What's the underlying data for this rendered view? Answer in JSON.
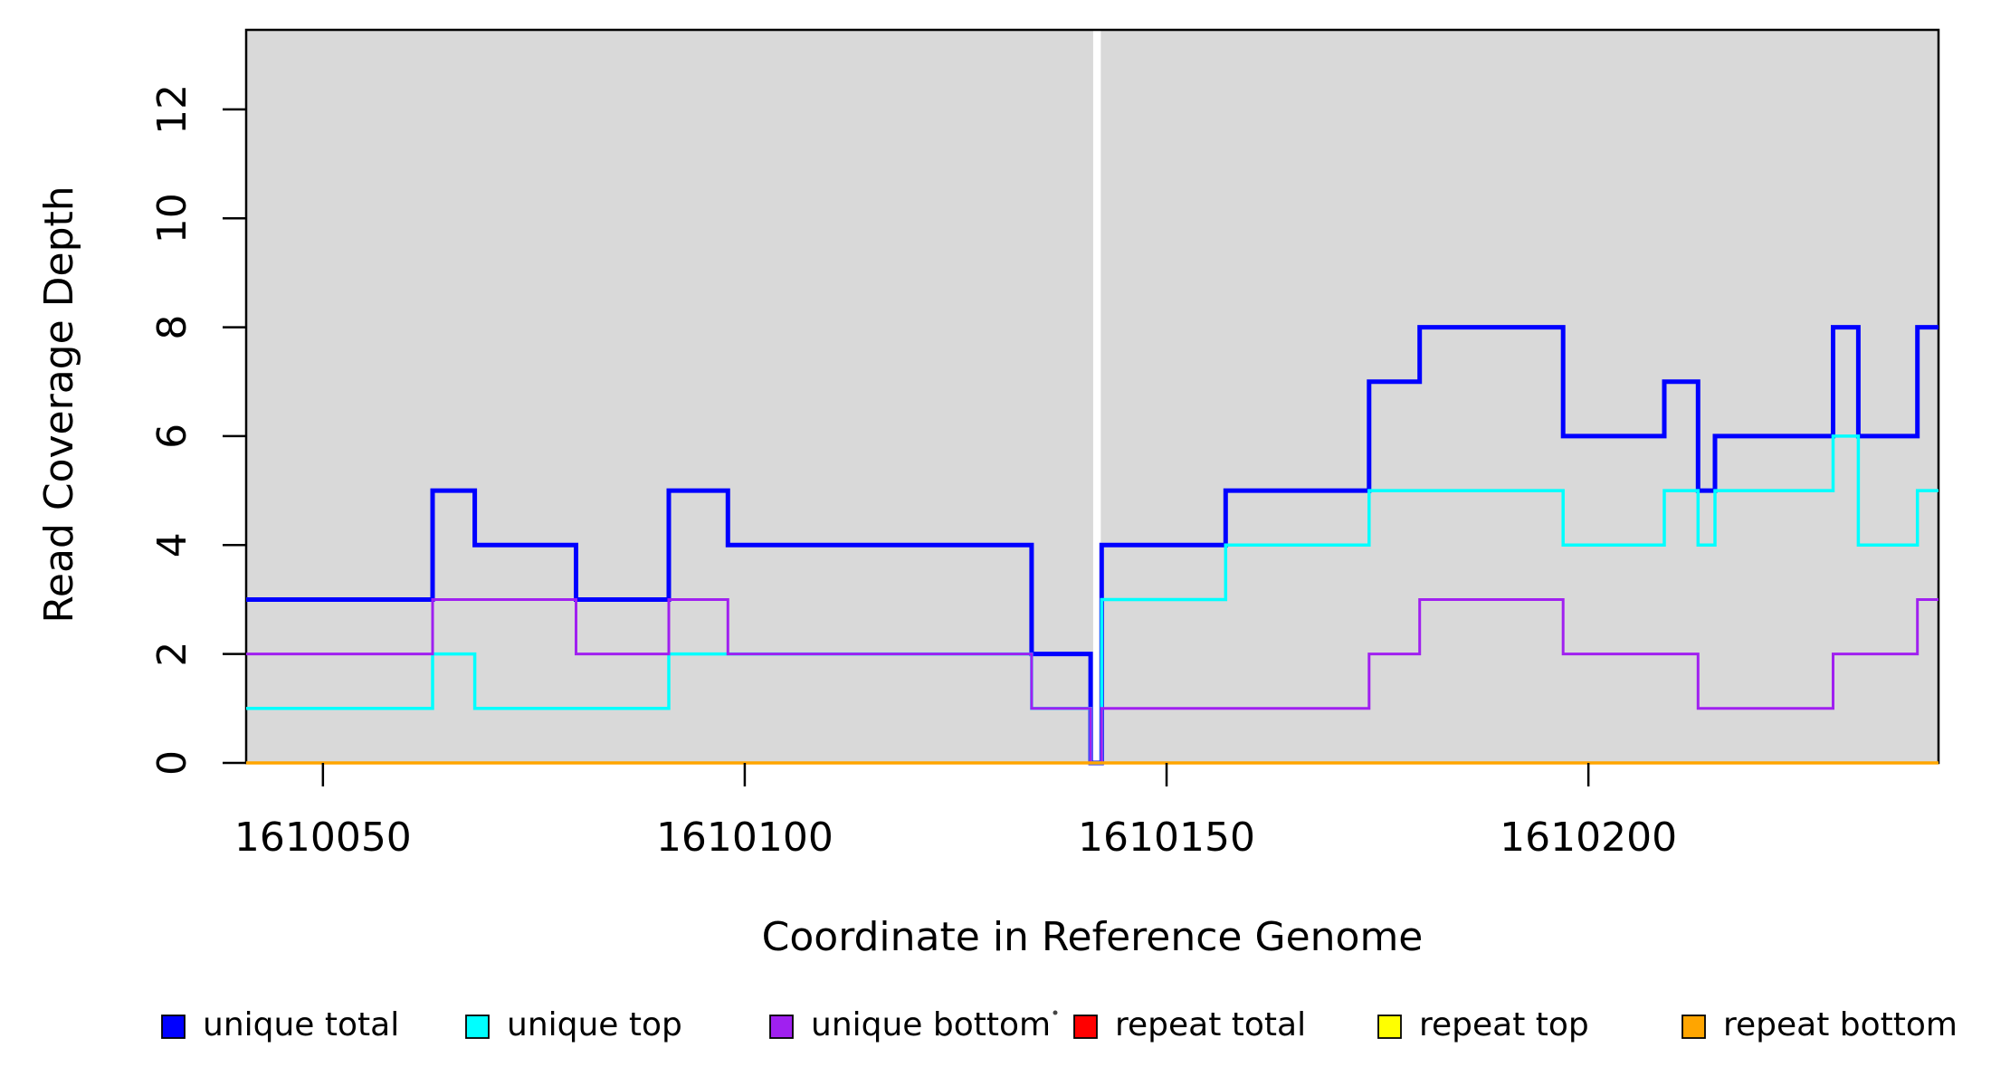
{
  "figure": {
    "plot_background_color": "#D9D9D9",
    "page_background_color": "#FFFFFF",
    "axis_color": "#000000"
  },
  "chart_data": {
    "type": "line",
    "subtype": "step",
    "title": "",
    "xlabel": "Coordinate in Reference Genome",
    "ylabel": "Read Coverage Depth",
    "xlim": [
      1610040.9,
      1610241.5
    ],
    "ylim": [
      0,
      13.46
    ],
    "x_ticks": [
      1610050,
      1610100,
      1610150,
      1610200
    ],
    "y_ticks": [
      0,
      2,
      4,
      6,
      8,
      10,
      12
    ],
    "grid": false,
    "legend_position": "bottom",
    "gap_region": {
      "x_start": 1610141.3,
      "x_end": 1610142.2,
      "color": "#FFFFFF"
    },
    "series": [
      {
        "name": "repeat total",
        "color": "#FF0000",
        "width": 3,
        "steps": [
          [
            1610040.9,
            0
          ]
        ]
      },
      {
        "name": "repeat top",
        "color": "#FFFF00",
        "width": 3,
        "steps": [
          [
            1610040.9,
            0
          ]
        ]
      },
      {
        "name": "unique total",
        "color": "#0000FF",
        "width": 5,
        "steps": [
          [
            1610040.9,
            3
          ],
          [
            1610063,
            5
          ],
          [
            1610068,
            4
          ],
          [
            1610080,
            3
          ],
          [
            1610091,
            5
          ],
          [
            1610098,
            4
          ],
          [
            1610134,
            2
          ],
          [
            1610141,
            0
          ],
          [
            1610142.3,
            4
          ],
          [
            1610157,
            5
          ],
          [
            1610174,
            7
          ],
          [
            1610180,
            8
          ],
          [
            1610197,
            6
          ],
          [
            1610209,
            7
          ],
          [
            1610213,
            5
          ],
          [
            1610215,
            6
          ],
          [
            1610229,
            8
          ],
          [
            1610232,
            6
          ],
          [
            1610239,
            8
          ]
        ]
      },
      {
        "name": "unique top",
        "color": "#00FFFF",
        "width": 3.5,
        "steps": [
          [
            1610040.9,
            1
          ],
          [
            1610063,
            2
          ],
          [
            1610068,
            1
          ],
          [
            1610091,
            2
          ],
          [
            1610134,
            1
          ],
          [
            1610141,
            0
          ],
          [
            1610142.3,
            3
          ],
          [
            1610157,
            4
          ],
          [
            1610174,
            5
          ],
          [
            1610197,
            4
          ],
          [
            1610209,
            5
          ],
          [
            1610213,
            4
          ],
          [
            1610215,
            5
          ],
          [
            1610229,
            6
          ],
          [
            1610232,
            4
          ],
          [
            1610239,
            5
          ]
        ]
      },
      {
        "name": "unique bottom",
        "color": "#A020F0",
        "width": 3,
        "steps": [
          [
            1610040.9,
            2
          ],
          [
            1610063,
            3
          ],
          [
            1610080,
            2
          ],
          [
            1610091,
            3
          ],
          [
            1610098,
            2
          ],
          [
            1610134,
            1
          ],
          [
            1610141,
            0
          ],
          [
            1610142.3,
            1
          ],
          [
            1610174,
            2
          ],
          [
            1610180,
            3
          ],
          [
            1610197,
            2
          ],
          [
            1610213,
            1
          ],
          [
            1610229,
            2
          ],
          [
            1610239,
            3
          ]
        ]
      },
      {
        "name": "repeat bottom",
        "color": "#FFA500",
        "width": 3.5,
        "steps": [
          [
            1610040.9,
            0
          ]
        ]
      }
    ],
    "legend": [
      {
        "label": "unique total",
        "color": "#0000FF"
      },
      {
        "label": "unique top",
        "color": "#00FFFF"
      },
      {
        "label": "unique bottom",
        "color": "#A020F0"
      },
      {
        "label": "repeat total",
        "color": "#FF0000"
      },
      {
        "label": "repeat top",
        "color": "#FFFF00"
      },
      {
        "label": "repeat bottom",
        "color": "#FFA500"
      }
    ]
  }
}
